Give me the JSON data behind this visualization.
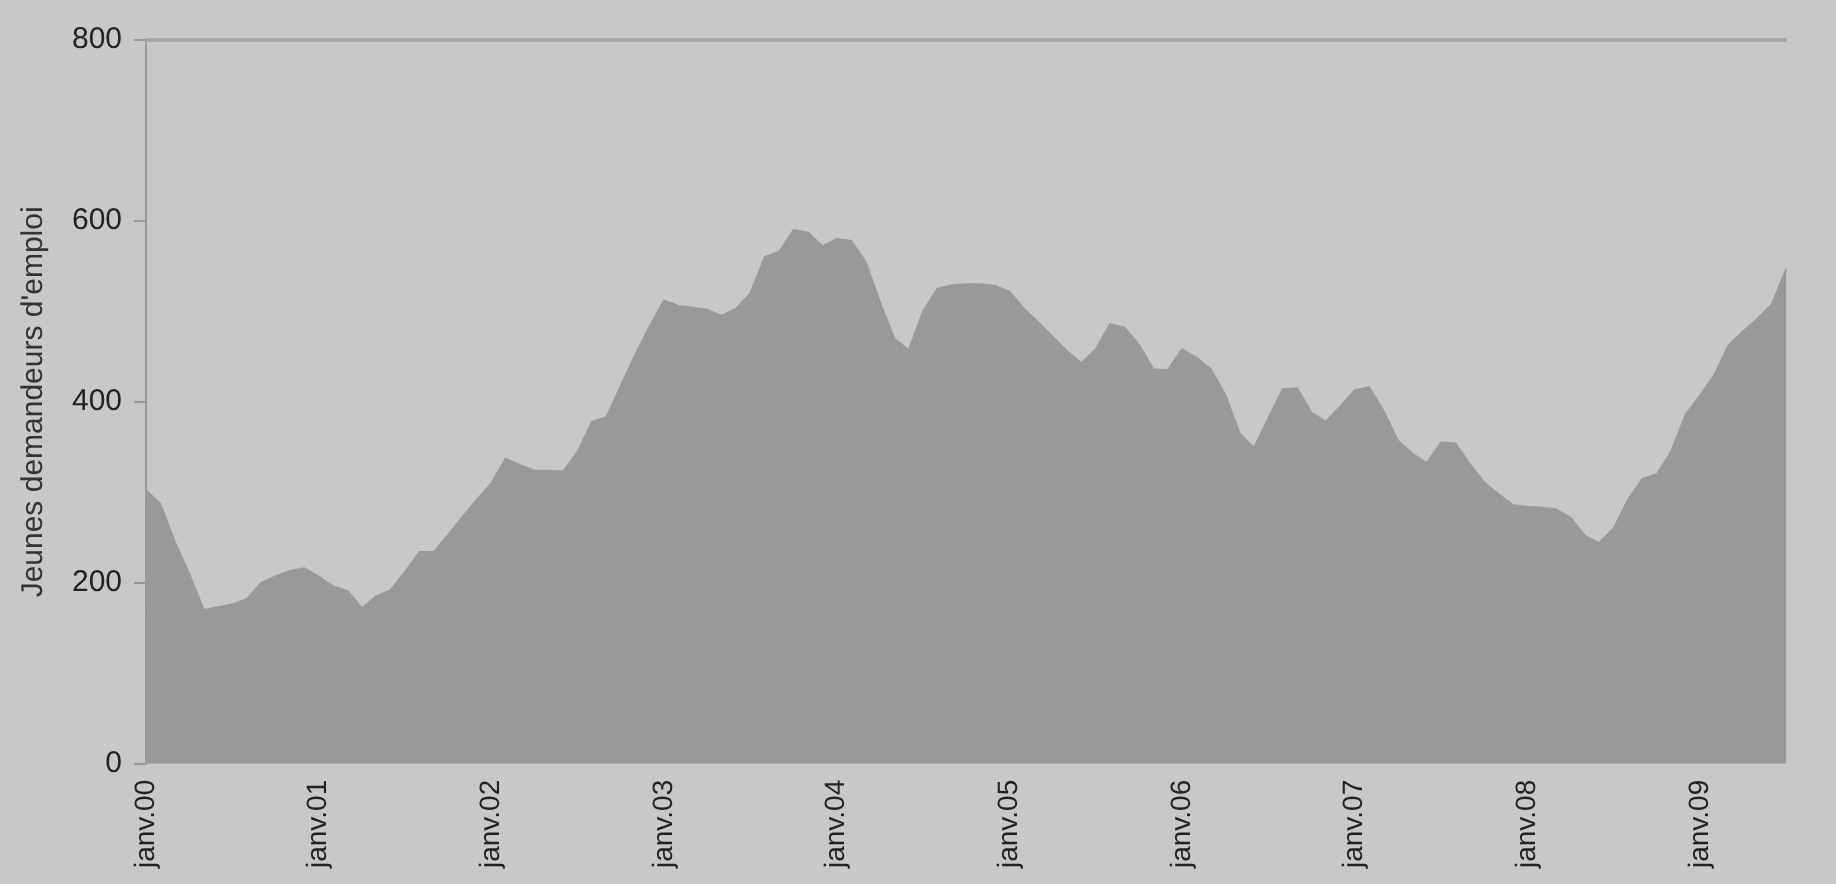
{
  "chart_data": {
    "type": "area",
    "ylabel": "Jeunes demandeurs d'emploi",
    "categories": [
      "janv.00",
      null,
      null,
      null,
      null,
      null,
      null,
      null,
      null,
      null,
      null,
      null,
      "janv.01",
      null,
      null,
      null,
      null,
      null,
      null,
      null,
      null,
      null,
      null,
      null,
      "janv.02",
      null,
      null,
      null,
      null,
      null,
      null,
      null,
      null,
      null,
      null,
      null,
      "janv.03",
      null,
      null,
      null,
      null,
      null,
      null,
      null,
      null,
      null,
      null,
      null,
      "janv.04",
      null,
      null,
      null,
      null,
      null,
      null,
      null,
      null,
      null,
      null,
      null,
      "janv.05",
      null,
      null,
      null,
      null,
      null,
      null,
      null,
      null,
      null,
      null,
      null,
      "janv.06",
      null,
      null,
      null,
      null,
      null,
      null,
      null,
      null,
      null,
      null,
      null,
      "janv.07",
      null,
      null,
      null,
      null,
      null,
      null,
      null,
      null,
      null,
      null,
      null,
      "janv.08",
      null,
      null,
      null,
      null,
      null,
      null,
      null,
      null,
      null,
      null,
      null,
      "janv.09",
      null,
      null,
      null,
      null,
      null,
      null
    ],
    "series": [
      {
        "color": "#999999",
        "values": [
          302,
          287,
          245,
          210,
          170,
          173,
          176,
          182,
          200,
          207,
          213,
          216,
          207,
          196,
          191,
          172,
          185,
          192,
          212,
          234,
          234,
          253,
          273,
          292,
          310,
          337,
          330,
          324,
          324,
          323,
          345,
          378,
          383,
          418,
          452,
          483,
          512,
          506,
          504,
          502,
          495,
          503,
          520,
          560,
          566,
          590,
          587,
          572,
          580,
          578,
          555,
          510,
          470,
          457,
          500,
          525,
          529,
          530,
          530,
          528,
          522,
          503,
          488,
          472,
          456,
          443,
          458,
          486,
          482,
          463,
          436,
          435,
          458,
          449,
          436,
          408,
          365,
          349,
          382,
          414,
          415,
          388,
          378,
          395,
          413,
          416,
          390,
          357,
          343,
          332,
          355,
          354,
          331,
          311,
          298,
          286,
          284,
          283,
          281,
          272,
          252,
          244,
          260,
          292,
          315,
          320,
          345,
          386,
          407,
          430,
          463,
          478,
          492,
          508,
          547
        ]
      }
    ],
    "ylim": [
      0,
      800
    ],
    "yticks": [
      0,
      200,
      400,
      600,
      800
    ],
    "grid": false,
    "legend": false
  }
}
